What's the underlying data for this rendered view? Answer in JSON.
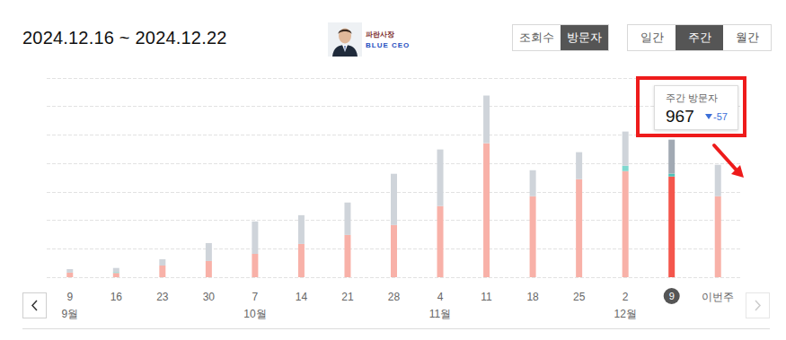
{
  "header": {
    "logo": [
      "파란사장",
      "BLUE CEO"
    ],
    "button_groups": [
      [
        {
          "label": "조회수",
          "selected": false
        },
        {
          "label": "방문자",
          "selected": true
        }
      ],
      [
        {
          "label": "일간",
          "selected": false
        },
        {
          "label": "주간",
          "selected": true
        },
        {
          "label": "월간",
          "selected": false
        }
      ]
    ]
  },
  "chart_data": {
    "type": "bar",
    "title": "2024.12.16 ~ 2024.12.22",
    "stacked": true,
    "categories": [
      "9",
      "16",
      "23",
      "30",
      "7",
      "14",
      "21",
      "28",
      "4",
      "11",
      "18",
      "25",
      "2",
      "9",
      "이번주"
    ],
    "month_labels": [
      "9월",
      null,
      null,
      null,
      "10월",
      null,
      null,
      null,
      "11월",
      null,
      null,
      null,
      "12월",
      null,
      null
    ],
    "series": [
      {
        "values": [
          32,
          30,
          82,
          114,
          164,
          234,
          297,
          367,
          500,
          942,
          569,
          689,
          746,
          708,
          569
        ],
        "colors": [
          "#f8b1a8",
          "#f8b1a8",
          "#f8b1a8",
          "#f8b1a8",
          "#f8b1a8",
          "#f8b1a8",
          "#f8b1a8",
          "#f8b1a8",
          "#f8b1a8",
          "#f8b1a8",
          "#f8b1a8",
          "#f8b1a8",
          "#f8b1a8",
          "#f4564c",
          "#f8b1a8"
        ]
      },
      {
        "values": [
          0,
          6,
          0,
          0,
          0,
          0,
          0,
          0,
          0,
          0,
          0,
          0,
          38,
          20,
          0
        ],
        "colors": [
          "#7fd8cf",
          "#7fd8cf",
          "#7fd8cf",
          "#7fd8cf",
          "#7fd8cf",
          "#7fd8cf",
          "#7fd8cf",
          "#7fd8cf",
          "#7fd8cf",
          "#7fd8cf",
          "#7fd8cf",
          "#7fd8cf",
          "#7fd8cf",
          "#4fc2b7",
          "#7fd8cf"
        ]
      },
      {
        "values": [
          25,
          29,
          44,
          126,
          228,
          202,
          228,
          360,
          398,
          335,
          183,
          190,
          240,
          239,
          221
        ],
        "colors": [
          "#cfd4da",
          "#cfd4da",
          "#cfd4da",
          "#cfd4da",
          "#cfd4da",
          "#cfd4da",
          "#cfd4da",
          "#cfd4da",
          "#cfd4da",
          "#cfd4da",
          "#cfd4da",
          "#cfd4da",
          "#cfd4da",
          "#a1a9b3",
          "#cfd4da"
        ]
      }
    ],
    "ylim": [
      0,
      1400
    ],
    "yticks": [
      0,
      200,
      400,
      600,
      800,
      1000,
      1200,
      1400
    ],
    "grid": true,
    "tick_labels": "x",
    "annotation": {
      "label": "주간 방문자",
      "value": 967,
      "change": -57,
      "index": 13
    }
  }
}
